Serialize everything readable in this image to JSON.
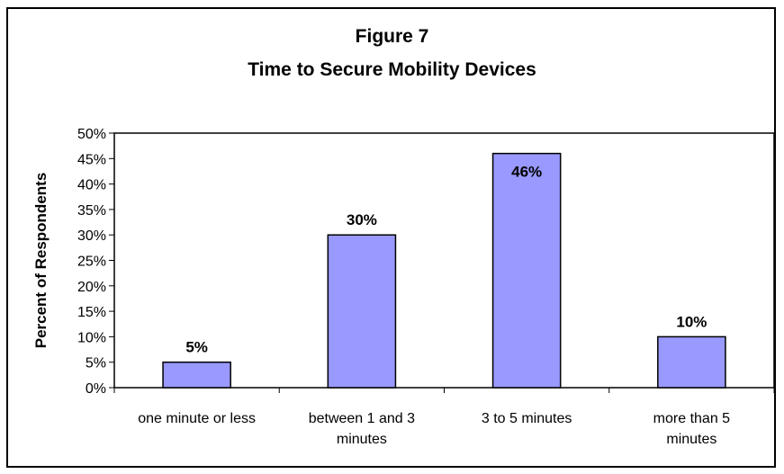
{
  "chart_data": {
    "type": "bar",
    "title": "Figure 7",
    "subtitle": "Time to Secure Mobility Devices",
    "xlabel": "",
    "ylabel": "Percent of Respondents",
    "categories": [
      "one minute or less",
      "between 1 and 3 minutes",
      "3 to 5 minutes",
      "more than 5 minutes"
    ],
    "category_lines": [
      [
        "one minute or less"
      ],
      [
        "between 1 and 3",
        "minutes"
      ],
      [
        "3 to 5 minutes"
      ],
      [
        "more than 5",
        "minutes"
      ]
    ],
    "values": [
      5,
      30,
      46,
      10
    ],
    "data_labels": [
      "5%",
      "30%",
      "46%",
      "10%"
    ],
    "ylim": [
      0,
      50
    ],
    "yticks": [
      0,
      5,
      10,
      15,
      20,
      25,
      30,
      35,
      40,
      45,
      50
    ],
    "ytick_labels": [
      "0%",
      "5%",
      "10%",
      "15%",
      "20%",
      "25%",
      "30%",
      "35%",
      "40%",
      "45%",
      "50%"
    ],
    "grid": false,
    "legend": "none",
    "colors": {
      "bar": "#9999ff",
      "bar_edge": "#000000",
      "axis": "#000000"
    }
  }
}
